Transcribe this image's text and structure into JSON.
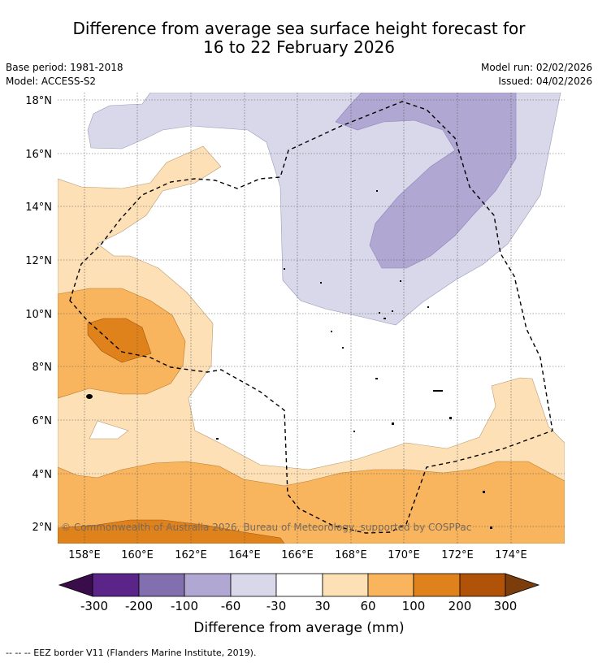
{
  "header": {
    "title_line1": "Difference from average sea surface height forecast for",
    "title_line2": "16 to 22 February 2026",
    "base_period": "Base period: 1981-2018",
    "model": "Model: ACCESS-S2",
    "model_run": "Model run: 02/02/2026",
    "issued": "Issued: 04/02/2026"
  },
  "map": {
    "lat_labels": [
      "18°N",
      "16°N",
      "14°N",
      "12°N",
      "10°N",
      "8°N",
      "6°N",
      "4°N",
      "2°N"
    ],
    "lon_labels": [
      "158°E",
      "160°E",
      "162°E",
      "164°E",
      "166°E",
      "168°E",
      "170°E",
      "172°E",
      "174°E"
    ],
    "copyright": "© Commonwealth of Australia 2026, Bureau of Meteorology, supported by COSPPac"
  },
  "colorbar": {
    "labels": [
      "-300",
      "-200",
      "-100",
      "-60",
      "-30",
      "30",
      "60",
      "100",
      "200",
      "300"
    ],
    "colors": [
      "#3b0c4a",
      "#5b2489",
      "#8170ad",
      "#b0a8d2",
      "#d8d8ea",
      "#ffffff",
      "#fde0b6",
      "#f9b45e",
      "#e0821c",
      "#b05309",
      "#7a3d0b"
    ],
    "title": "Difference from average (mm)"
  },
  "footer": {
    "legend": "--  --  -- EEZ border V11 (Flanders Marine Institute, 2019)."
  }
}
